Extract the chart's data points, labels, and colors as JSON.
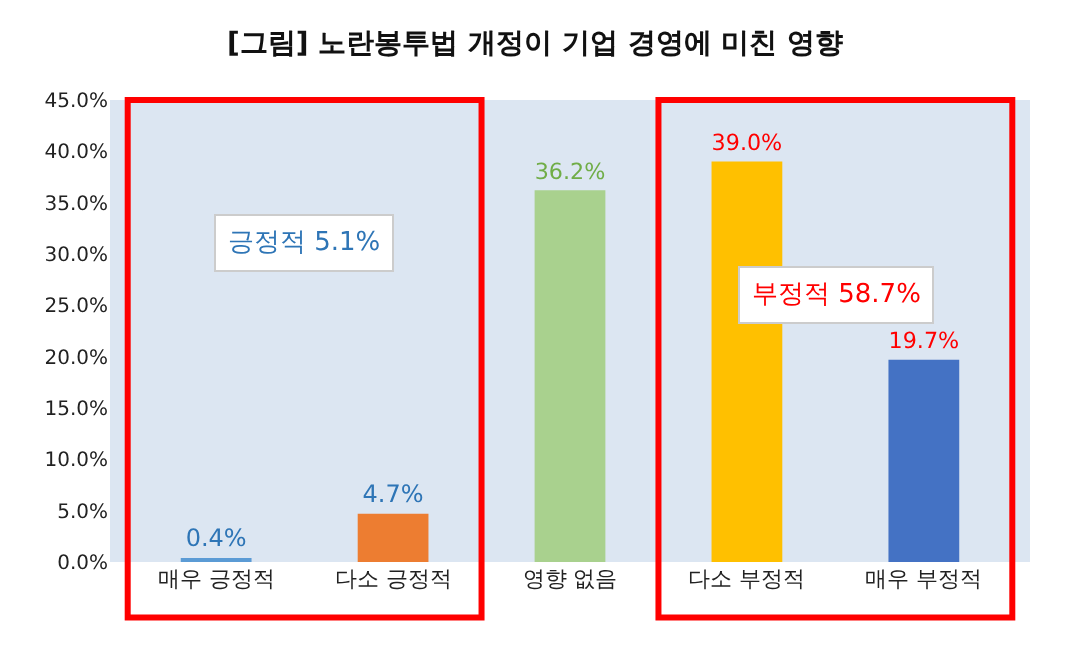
{
  "chart_data": {
    "type": "bar",
    "title": "[그림] 노란봉투법 개정이 기업 경영에 미친 영향",
    "categories": [
      "매우 긍정적",
      "다소 긍정적",
      "영향 없음",
      "다소 부정적",
      "매우 부정적"
    ],
    "values": [
      0.4,
      4.7,
      36.2,
      39.0,
      19.7
    ],
    "colors": [
      "#5b9bd5",
      "#ed7d31",
      "#a9d18e",
      "#ffc000",
      "#4472c4"
    ],
    "value_labels": [
      "0.4%",
      "4.7%",
      "36.2%",
      "39.0%",
      "19.7%"
    ],
    "ylim": [
      0,
      45
    ],
    "yticks": [
      {
        "value": 0,
        "label": "0.0%"
      },
      {
        "value": 5,
        "label": "5.0%"
      },
      {
        "value": 10,
        "label": "10.0%"
      },
      {
        "value": 15,
        "label": "15.0%"
      },
      {
        "value": 20,
        "label": "20.0%"
      },
      {
        "value": 25,
        "label": "25.0%"
      },
      {
        "value": 30,
        "label": "30.0%"
      },
      {
        "value": 35,
        "label": "35.0%"
      },
      {
        "value": 40,
        "label": "40.0%"
      },
      {
        "value": 45,
        "label": "45.0%"
      }
    ],
    "grid": false,
    "annotations": [
      "긍정적 5.1%",
      "부정적 58.7%"
    ]
  }
}
